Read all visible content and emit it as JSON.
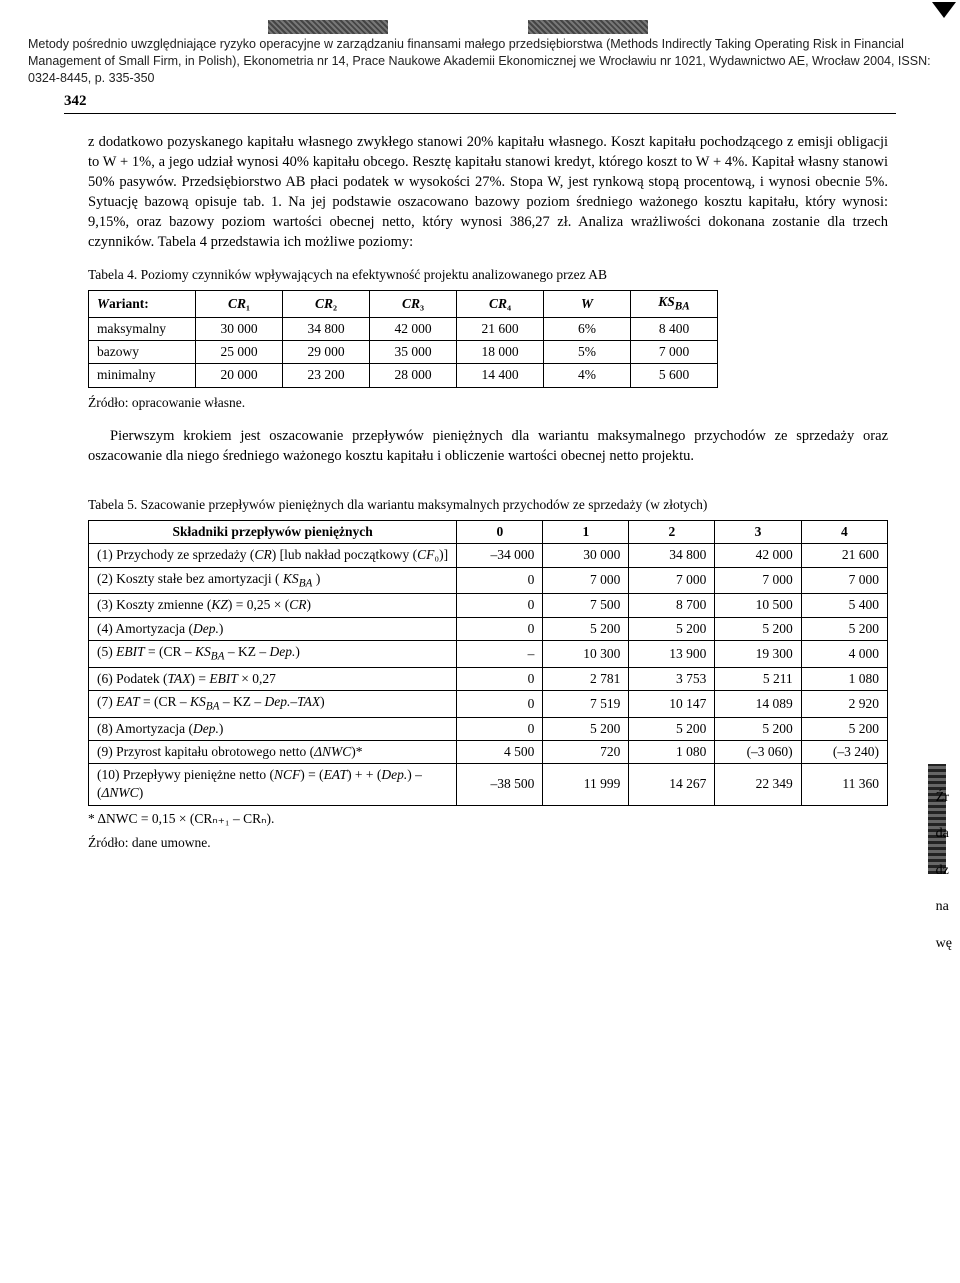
{
  "reference": "Metody pośrednio uwzględniające ryzyko operacyjne w zarządzaniu finansami małego przedsiębiorstwa (Methods Indirectly Taking Operating Risk in Financial Management of Small Firm, in Polish), Ekonometria nr 14, Prace Naukowe Akademii Ekonomicznej we Wrocławiu nr 1021, Wydawnictwo AE, Wrocław 2004, ISSN: 0324-8445, p. 335-350",
  "page_number": "342",
  "para1": "z dodatkowo pozyskanego kapitału własnego zwykłego stanowi 20% kapitału własnego. Koszt kapitału pochodzącego z emisji obligacji to W + 1%, a jego udział wynosi 40% kapitału obcego. Resztę kapitału stanowi kredyt, którego koszt to W + 4%. Kapitał własny stanowi 50% pasywów. Przedsiębiorstwo AB płaci podatek w wysokości 27%. Stopa W, jest rynkową stopą procentową, i wynosi obecnie 5%. Sytuację bazową opisuje tab. 1. Na jej podstawie oszacowano bazowy poziom średniego ważonego kosztu kapitału, który wynosi: 9,15%, oraz bazowy poziom wartości obecnej netto, który wynosi 386,27 zł. Analiza wrażliwości dokonana zostanie dla trzech czynników. Tabela 4 przedstawia ich możliwe poziomy:",
  "table4": {
    "caption": "Tabela 4. Poziomy czynników wpływających na efektywność projektu analizowanego przez AB",
    "columns": [
      "Wariant:",
      "CR₁",
      "CR₂",
      "CR₃",
      "CR₄",
      "W",
      "KSBA"
    ],
    "rows": [
      [
        "maksymalny",
        "30 000",
        "34 800",
        "42 000",
        "21 600",
        "6%",
        "8 400"
      ],
      [
        "bazowy",
        "25 000",
        "29 000",
        "35 000",
        "18 000",
        "5%",
        "7 000"
      ],
      [
        "minimalny",
        "20 000",
        "23 200",
        "28 000",
        "14 400",
        "4%",
        "5 600"
      ]
    ],
    "source": "Źródło: opracowanie własne."
  },
  "para2": "Pierwszym krokiem jest oszacowanie przepływów pieniężnych dla wariantu maksymalnego przychodów ze sprzedaży oraz oszacowanie dla niego średniego ważonego kosztu kapitału i obliczenie wartości obecnej netto projektu.",
  "table5": {
    "caption": "Tabela 5. Szacowanie przepływów pieniężnych dla wariantu maksymalnych przychodów ze sprzedaży (w złotych)",
    "header": [
      "Składniki przepływów pieniężnych",
      "0",
      "1",
      "2",
      "3",
      "4"
    ],
    "rows": [
      [
        "(1) Przychody ze sprzedaży (CR) [lub nakład początkowy (CF₀)]",
        "–34 000",
        "30 000",
        "34 800",
        "42 000",
        "21 600"
      ],
      [
        "(2) Koszty stałe bez amortyzacji ( KSBA )",
        "0",
        "7 000",
        "7 000",
        "7 000",
        "7 000"
      ],
      [
        "(3) Koszty zmienne (KZ) = 0,25 × (CR)",
        "0",
        "7 500",
        "8 700",
        "10 500",
        "5 400"
      ],
      [
        "(4) Amortyzacja (Dep.)",
        "0",
        "5 200",
        "5 200",
        "5 200",
        "5 200"
      ],
      [
        "(5) EBIT = (CR – KSBA – KZ – Dep.)",
        "–",
        "10 300",
        "13 900",
        "19 300",
        "4 000"
      ],
      [
        "(6) Podatek (TAX) = EBIT × 0,27",
        "0",
        "2 781",
        "3 753",
        "5 211",
        "1 080"
      ],
      [
        "(7) EAT = (CR – KSBA – KZ – Dep.–TAX)",
        "0",
        "7 519",
        "10 147",
        "14 089",
        "2 920"
      ],
      [
        "(8) Amortyzacja (Dep.)",
        "0",
        "5 200",
        "5 200",
        "5 200",
        "5 200"
      ],
      [
        "(9) Przyrost kapitału obrotowego netto (ΔNWC)*",
        "4 500",
        "720",
        "1 080",
        "(–3 060)",
        "(–3 240)"
      ],
      [
        "(10) Przepływy pieniężne netto (NCF) = (EAT) + + (Dep.) – (ΔNWC)",
        "–38 500",
        "11 999",
        "14 267",
        "22 349",
        "11 360"
      ]
    ],
    "footnote": "* ΔNWC = 0,15 × (CRₙ₊₁ – CRₙ).",
    "source": "Źródło: dane umowne."
  },
  "margin": [
    "Źr",
    "da",
    "dz",
    "na",
    "wę"
  ]
}
